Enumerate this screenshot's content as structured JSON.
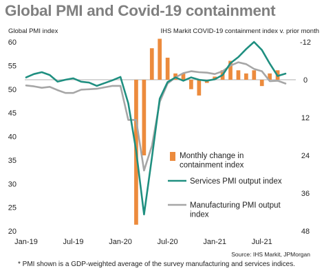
{
  "colors": {
    "services": "#1f8f80",
    "manufacturing": "#a6a6a6",
    "containment": "#ec8b3d",
    "title": "#808080",
    "zero_line": "#c8c8c8"
  },
  "footer": {
    "source": "Source: IHS Markit, JPMorgan",
    "footnote": "* PMI shown is a GDP-weighted average of the survey manufacturing and services indices."
  },
  "chart_data": {
    "type": "bar+line",
    "title": "Global PMI and Covid-19 containment",
    "ylabel": "Global PMI index",
    "y2label": "IHS Markit COVID-19 containment index v. prior month",
    "x_ticks": [
      "Jan-19",
      "Jul-19",
      "Jan-20",
      "Jul-20",
      "Jan-21",
      "Jul-21"
    ],
    "months": [
      "2019-01",
      "2019-02",
      "2019-03",
      "2019-04",
      "2019-05",
      "2019-06",
      "2019-07",
      "2019-08",
      "2019-09",
      "2019-10",
      "2019-11",
      "2019-12",
      "2020-01",
      "2020-02",
      "2020-03",
      "2020-04",
      "2020-05",
      "2020-06",
      "2020-07",
      "2020-08",
      "2020-09",
      "2020-10",
      "2020-11",
      "2020-12",
      "2021-01",
      "2021-02",
      "2021-03",
      "2021-04",
      "2021-05",
      "2021-06",
      "2021-07",
      "2021-08",
      "2021-09",
      "2021-10"
    ],
    "ylim": [
      20,
      60
    ],
    "yticks": [
      20,
      25,
      30,
      35,
      40,
      45,
      50,
      55,
      60
    ],
    "y2lim": [
      -12,
      48
    ],
    "y2ticks": [
      -12,
      0,
      12,
      24,
      36,
      48
    ],
    "y2_inverted": true,
    "y2_tick_labels": [
      "-12",
      "0",
      "12",
      "24",
      "36",
      "48"
    ],
    "legend_position": "lower-right",
    "series": [
      {
        "name": "Monthly change in containment index",
        "type": "bar",
        "axis": "right",
        "start": "2020-02",
        "values": [
          0,
          46,
          24,
          -10,
          -13,
          -7,
          -2,
          -2,
          3,
          5,
          1,
          -1,
          -3,
          -6,
          -3,
          -2,
          -3,
          2,
          -2,
          -3
        ]
      },
      {
        "name": "Services PMI output index",
        "type": "line",
        "axis": "left",
        "start": "2019-01",
        "values": [
          52.5,
          53.2,
          53.6,
          53.0,
          51.6,
          52.0,
          52.3,
          51.6,
          51.4,
          50.7,
          51.3,
          51.9,
          52.6,
          47.0,
          37.0,
          23.5,
          35.5,
          48.0,
          51.5,
          52.5,
          51.8,
          52.5,
          52.0,
          51.8,
          52.1,
          53.0,
          55.5,
          56.8,
          58.5,
          60.0,
          58.3,
          55.4,
          52.8,
          53.3
        ]
      },
      {
        "name": "Manufacturing PMI output index",
        "type": "line",
        "axis": "left",
        "start": "2019-01",
        "values": [
          50.8,
          50.6,
          50.3,
          50.5,
          49.8,
          49.2,
          49.2,
          49.9,
          50.0,
          50.1,
          50.4,
          50.7,
          50.7,
          43.5,
          43.5,
          32.8,
          38.0,
          47.3,
          51.2,
          52.5,
          53.4,
          53.8,
          53.6,
          53.5,
          53.2,
          53.8,
          55.0,
          55.7,
          55.3,
          54.3,
          53.8,
          51.7,
          51.8,
          51.2
        ]
      }
    ]
  }
}
